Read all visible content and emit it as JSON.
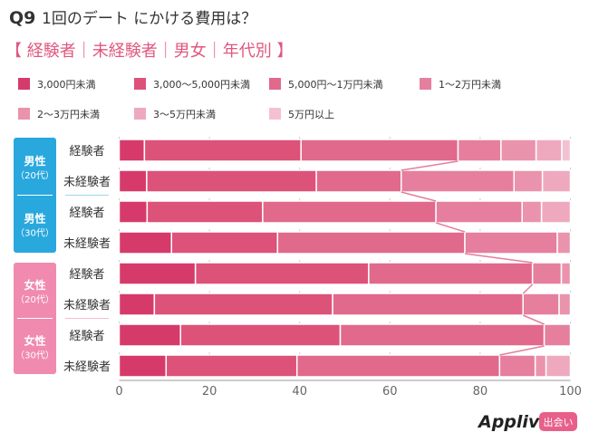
{
  "title_prefix": "Q9",
  "title": "1回のデート にかける費用は？",
  "subtitle": "【 経験者｜未経験者｜男女｜年代別 】",
  "brand": {
    "logo_text": "Appliv",
    "badge": "出会い",
    "badge_color": "#e8608a"
  },
  "groups": [
    {
      "label": "男性",
      "sub": "（20代）",
      "color": "#29a8de"
    },
    {
      "label": "男性",
      "sub": "（30代）",
      "color": "#29a8de"
    },
    {
      "label": "女性",
      "sub": "（20代）",
      "color": "#f08aae"
    },
    {
      "label": "女性",
      "sub": "（30代）",
      "color": "#f08aae"
    }
  ],
  "chart_data": {
    "type": "bar",
    "orientation": "horizontal-stacked-100",
    "title": "1回のデートにかける費用は？",
    "categories": [
      "男性20代 経験者",
      "男性20代 未経験者",
      "男性30代 経験者",
      "男性30代 未経験者",
      "女性20代 経験者",
      "女性20代 未経験者",
      "女性30代 経験者",
      "女性30代 未経験者"
    ],
    "row_labels": [
      "経験者",
      "未経験者",
      "経験者",
      "未経験者",
      "経験者",
      "未経験者",
      "経験者",
      "未経験者"
    ],
    "xlim": [
      0,
      100
    ],
    "xticks": [
      "0",
      "20",
      "40",
      "60",
      "80",
      "100"
    ],
    "grid": true,
    "legend_position": "top",
    "series": [
      {
        "name": "3,000円未満",
        "color": "#d63a6b",
        "values": [
          5.6,
          6.1,
          6.2,
          11.6,
          16.9,
          7.8,
          13.6,
          10.4
        ]
      },
      {
        "name": "3,000〜5,000円未満",
        "color": "#dc5279",
        "values": [
          34.7,
          37.6,
          25.6,
          23.5,
          38.4,
          39.5,
          35.4,
          29.0
        ]
      },
      {
        "name": "5,000円〜1万円未満",
        "color": "#e0698c",
        "values": [
          34.8,
          18.8,
          38.4,
          41.5,
          36.3,
          42.2,
          45.2,
          44.9
        ]
      },
      {
        "name": "1〜2万円未満",
        "color": "#e57f9d",
        "values": [
          9.5,
          25.0,
          19.1,
          20.5,
          6.4,
          8.0,
          5.8,
          7.9
        ]
      },
      {
        "name": "2〜3万円未満",
        "color": "#ea93ad",
        "values": [
          7.8,
          6.3,
          4.3,
          2.9,
          2.0,
          2.5,
          0,
          2.4
        ]
      },
      {
        "name": "3〜5万円未満",
        "color": "#efa9bf",
        "values": [
          5.7,
          6.2,
          6.4,
          0,
          0,
          0,
          0,
          5.4
        ]
      },
      {
        "name": "5万円以上",
        "color": "#f4c1d2",
        "values": [
          1.9,
          0,
          0,
          0,
          0,
          0,
          0,
          0
        ]
      }
    ]
  }
}
